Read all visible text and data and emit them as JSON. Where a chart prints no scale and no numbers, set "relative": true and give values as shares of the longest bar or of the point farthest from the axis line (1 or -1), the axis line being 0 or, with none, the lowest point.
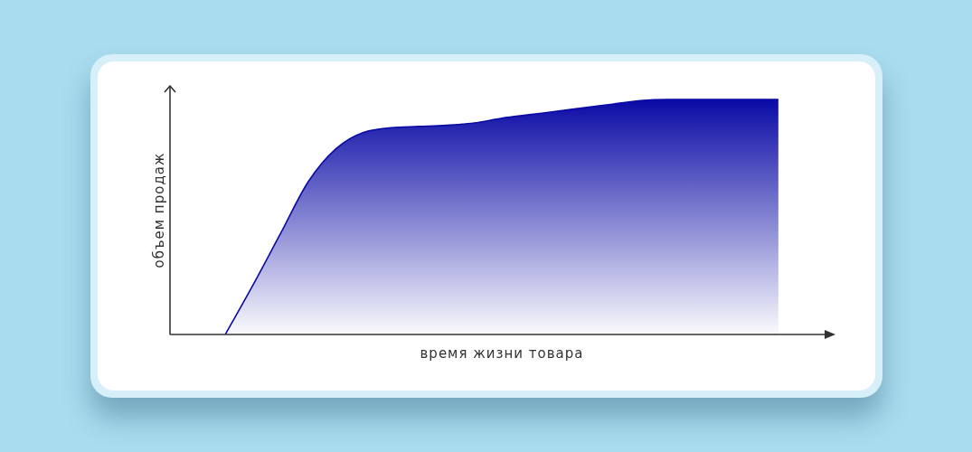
{
  "chart_data": {
    "type": "area",
    "xlabel": "время жизни товара",
    "ylabel": "объем продаж",
    "relative": true,
    "categories": [
      null,
      null,
      null,
      null,
      null,
      null,
      null,
      null,
      null,
      null,
      null,
      null,
      null,
      null,
      null,
      null,
      null,
      null,
      null,
      null,
      null,
      null,
      null,
      null,
      null
    ],
    "values": [
      null,
      null,
      0,
      0.21,
      0.43,
      0.65,
      0.79,
      0.86,
      0.88,
      0.885,
      0.89,
      0.9,
      0.92,
      0.935,
      0.95,
      0.965,
      0.98,
      0.995,
      1,
      1,
      1,
      1,
      1,
      null,
      null
    ],
    "color": "#0a0aa6"
  }
}
